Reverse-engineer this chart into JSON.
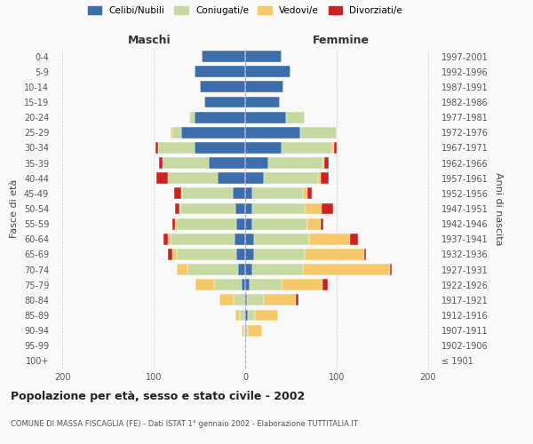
{
  "age_groups": [
    "100+",
    "95-99",
    "90-94",
    "85-89",
    "80-84",
    "75-79",
    "70-74",
    "65-69",
    "60-64",
    "55-59",
    "50-54",
    "45-49",
    "40-44",
    "35-39",
    "30-34",
    "25-29",
    "20-24",
    "15-19",
    "10-14",
    "5-9",
    "0-4"
  ],
  "birth_years": [
    "≤ 1901",
    "1902-1906",
    "1907-1911",
    "1912-1916",
    "1917-1921",
    "1922-1926",
    "1927-1931",
    "1932-1936",
    "1937-1941",
    "1942-1946",
    "1947-1951",
    "1952-1956",
    "1957-1961",
    "1962-1966",
    "1967-1971",
    "1972-1976",
    "1977-1981",
    "1982-1986",
    "1987-1991",
    "1992-1996",
    "1997-2001"
  ],
  "maschi": {
    "celibi": [
      0,
      0,
      0,
      1,
      1,
      4,
      8,
      10,
      12,
      10,
      11,
      14,
      30,
      40,
      55,
      70,
      55,
      45,
      50,
      55,
      48
    ],
    "coniugati": [
      0,
      0,
      2,
      5,
      12,
      30,
      55,
      65,
      70,
      65,
      60,
      55,
      55,
      50,
      40,
      10,
      5,
      0,
      0,
      0,
      0
    ],
    "vedovi": [
      0,
      0,
      2,
      5,
      15,
      20,
      12,
      5,
      3,
      2,
      1,
      1,
      0,
      0,
      0,
      2,
      1,
      0,
      0,
      0,
      0
    ],
    "divorziati": [
      0,
      0,
      0,
      0,
      0,
      0,
      0,
      5,
      4,
      3,
      5,
      8,
      12,
      4,
      3,
      0,
      0,
      0,
      0,
      0,
      0
    ]
  },
  "femmine": {
    "nubili": [
      0,
      0,
      0,
      3,
      2,
      5,
      8,
      10,
      10,
      8,
      8,
      8,
      20,
      25,
      40,
      60,
      45,
      38,
      42,
      50,
      40
    ],
    "coniugate": [
      0,
      0,
      3,
      8,
      18,
      35,
      55,
      55,
      60,
      60,
      58,
      55,
      60,
      60,
      55,
      40,
      20,
      0,
      0,
      0,
      0
    ],
    "vedove": [
      1,
      1,
      15,
      25,
      35,
      45,
      95,
      65,
      45,
      15,
      18,
      5,
      3,
      2,
      2,
      0,
      0,
      0,
      0,
      0,
      0
    ],
    "divorziate": [
      0,
      0,
      0,
      0,
      3,
      5,
      2,
      2,
      8,
      3,
      12,
      5,
      8,
      4,
      3,
      0,
      0,
      0,
      0,
      0,
      0
    ]
  },
  "colors": {
    "celibi": "#3b6eaa",
    "coniugati": "#c5d9a0",
    "vedovi": "#f5c96a",
    "divorziati": "#cc2222"
  },
  "title": "Popolazione per età, sesso e stato civile - 2002",
  "subtitle": "COMUNE DI MASSA FISCAGLIA (FE) - Dati ISTAT 1° gennaio 2002 - Elaborazione TUTTITALIA.IT",
  "ylabel_left": "Fasce di età",
  "ylabel_right": "Anni di nascita",
  "xlabel_maschi": "Maschi",
  "xlabel_femmine": "Femmine",
  "xlim": 210,
  "background": "#f9f9f9",
  "legend_labels": [
    "Celibi/Nubili",
    "Coniugati/e",
    "Vedovi/e",
    "Divorziati/e"
  ]
}
